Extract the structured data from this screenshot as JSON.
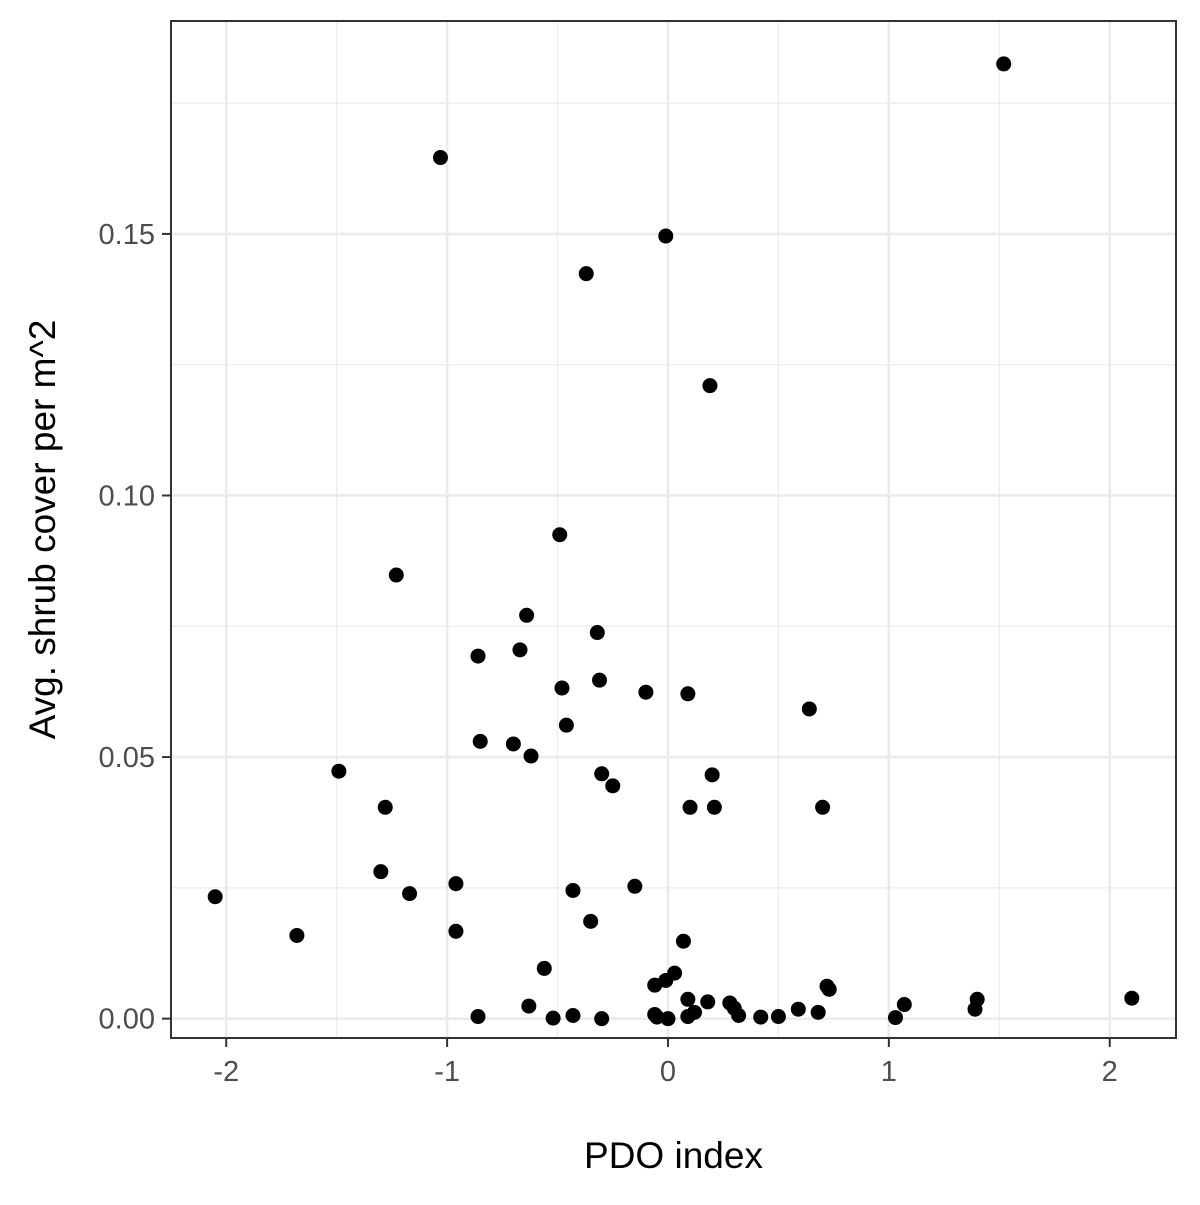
{
  "chart_data": {
    "type": "scatter",
    "title": "",
    "xlabel": "PDO index",
    "ylabel": "Avg. shrub cover per m^2",
    "xlim": [
      -2.25,
      2.3
    ],
    "ylim": [
      -0.0037,
      0.1907
    ],
    "x_ticks": [
      -2,
      -1,
      0,
      1,
      2
    ],
    "x_tick_labels": [
      "-2",
      "-1",
      "0",
      "1",
      "2"
    ],
    "y_ticks": [
      0.0,
      0.05,
      0.1,
      0.15
    ],
    "y_tick_labels": [
      "0.00",
      "0.05",
      "0.10",
      "0.15"
    ],
    "grid": true,
    "legend": "none",
    "colors": {
      "points": "#000000",
      "grid": "#ebebeb",
      "panel_border": "#333333",
      "tick_label": "#4d4d4d"
    },
    "points": [
      {
        "x": 1.52,
        "y": 0.1825
      },
      {
        "x": -1.03,
        "y": 0.1646
      },
      {
        "x": -0.01,
        "y": 0.1496
      },
      {
        "x": -0.37,
        "y": 0.1424
      },
      {
        "x": 0.19,
        "y": 0.121
      },
      {
        "x": -0.49,
        "y": 0.0925
      },
      {
        "x": -1.23,
        "y": 0.0848
      },
      {
        "x": -0.64,
        "y": 0.0771
      },
      {
        "x": -0.32,
        "y": 0.0738
      },
      {
        "x": -0.67,
        "y": 0.0705
      },
      {
        "x": -0.86,
        "y": 0.0693
      },
      {
        "x": -0.31,
        "y": 0.0647
      },
      {
        "x": -0.48,
        "y": 0.0632
      },
      {
        "x": -0.1,
        "y": 0.0624
      },
      {
        "x": 0.09,
        "y": 0.0621
      },
      {
        "x": 0.64,
        "y": 0.0592
      },
      {
        "x": -0.46,
        "y": 0.0561
      },
      {
        "x": -0.85,
        "y": 0.053
      },
      {
        "x": -0.7,
        "y": 0.0525
      },
      {
        "x": -0.62,
        "y": 0.0502
      },
      {
        "x": -1.49,
        "y": 0.0473
      },
      {
        "x": -0.3,
        "y": 0.0468
      },
      {
        "x": 0.2,
        "y": 0.0466
      },
      {
        "x": -0.25,
        "y": 0.0445
      },
      {
        "x": -1.28,
        "y": 0.0404
      },
      {
        "x": 0.1,
        "y": 0.0404
      },
      {
        "x": 0.21,
        "y": 0.0404
      },
      {
        "x": 0.7,
        "y": 0.0404
      },
      {
        "x": -1.3,
        "y": 0.0281
      },
      {
        "x": -0.96,
        "y": 0.0258
      },
      {
        "x": -0.15,
        "y": 0.0253
      },
      {
        "x": -0.43,
        "y": 0.0245
      },
      {
        "x": -1.17,
        "y": 0.0239
      },
      {
        "x": -2.05,
        "y": 0.0233
      },
      {
        "x": -0.35,
        "y": 0.0186
      },
      {
        "x": -0.96,
        "y": 0.0167
      },
      {
        "x": -1.68,
        "y": 0.0159
      },
      {
        "x": 0.07,
        "y": 0.0148
      },
      {
        "x": -0.56,
        "y": 0.0096
      },
      {
        "x": 0.03,
        "y": 0.0087
      },
      {
        "x": -0.01,
        "y": 0.0073
      },
      {
        "x": -0.06,
        "y": 0.0064
      },
      {
        "x": 0.72,
        "y": 0.0062
      },
      {
        "x": 0.73,
        "y": 0.0056
      },
      {
        "x": 2.1,
        "y": 0.0039
      },
      {
        "x": 0.09,
        "y": 0.0037
      },
      {
        "x": 1.4,
        "y": 0.0037
      },
      {
        "x": 0.18,
        "y": 0.0032
      },
      {
        "x": 0.28,
        "y": 0.003
      },
      {
        "x": 1.07,
        "y": 0.0027
      },
      {
        "x": -0.63,
        "y": 0.0024
      },
      {
        "x": 0.3,
        "y": 0.002
      },
      {
        "x": 0.59,
        "y": 0.0018
      },
      {
        "x": 1.39,
        "y": 0.0018
      },
      {
        "x": 0.12,
        "y": 0.0012
      },
      {
        "x": 0.68,
        "y": 0.0012
      },
      {
        "x": -0.06,
        "y": 0.0008
      },
      {
        "x": -0.43,
        "y": 0.0006
      },
      {
        "x": 0.32,
        "y": 0.0006
      },
      {
        "x": -0.86,
        "y": 0.0004
      },
      {
        "x": 0.09,
        "y": 0.0004
      },
      {
        "x": 0.5,
        "y": 0.0004
      },
      {
        "x": -0.05,
        "y": 0.0003
      },
      {
        "x": 0.42,
        "y": 0.0003
      },
      {
        "x": 1.03,
        "y": 0.0002
      },
      {
        "x": -0.52,
        "y": 0.0001
      },
      {
        "x": -0.3,
        "y": 0.0
      },
      {
        "x": 0.0,
        "y": 0.0
      }
    ]
  }
}
